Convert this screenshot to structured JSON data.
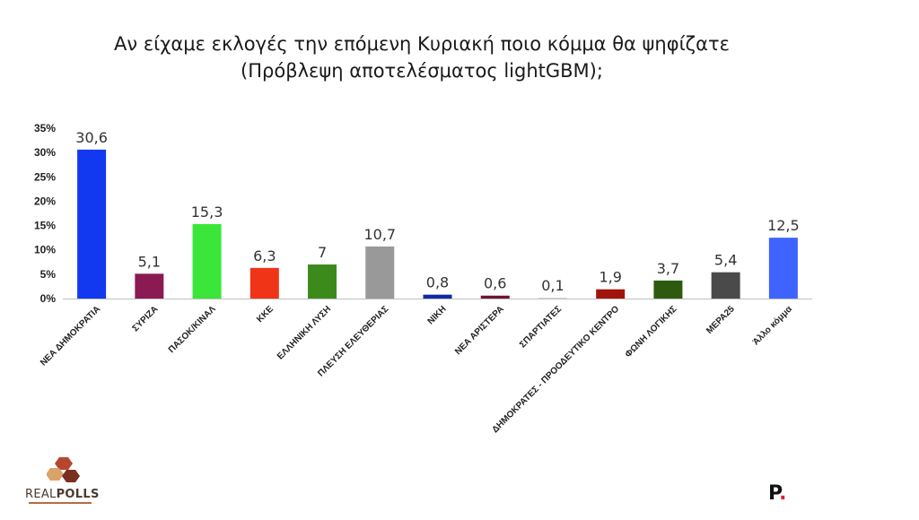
{
  "title": {
    "line1": "Αν είχαμε εκλογές την επόμενη Κυριακή ποιο κόμμα θα ψηφίζατε",
    "line2": "(Πρόβλεψη αποτελέσματος lightGBM);"
  },
  "logos": {
    "left_text_a": "REAL",
    "left_text_b": "POLLS",
    "right_text": "P",
    "right_dot": "."
  },
  "chart_data": {
    "type": "bar",
    "title": "Αν είχαμε εκλογές την επόμενη Κυριακή ποιο κόμμα θα ψηφίζατε (Πρόβλεψη αποτελέσματος lightGBM);",
    "xlabel": "",
    "ylabel": "",
    "ylim": [
      0,
      35
    ],
    "yticks": [
      "0%",
      "5%",
      "10%",
      "15%",
      "20%",
      "25%",
      "30%",
      "35%"
    ],
    "grid": false,
    "legend": "none",
    "categories": [
      "ΝΕΑ ΔΗΜΟΚΡΑΤΙΑ",
      "ΣΥΡΙΖΑ",
      "ΠΑΣΟΚ/ΚΙΝΑΛ",
      "ΚΚΕ",
      "ΕΛΛΗΝΙΚΗ ΛΥΣΗ",
      "ΠΛΕΥΣΗ ΕΛΕΥΘΕΡΙΑΣ",
      "ΝΙΚΗ",
      "ΝΕΑ ΑΡΙΣΤΕΡΑ",
      "ΣΠΑΡΤΙΑΤΕΣ",
      "ΔΗΜΟΚΡΑΤΕΣ - ΠΡΟΟΔΕΥΤΙΚΟ ΚΕΝΤΡΟ",
      "ΦΩΝΗ ΛΟΓΙΚΗΣ",
      "ΜΕΡΑ25",
      "Άλλο κόμμα"
    ],
    "values": [
      30.6,
      5.1,
      15.3,
      6.3,
      7,
      10.7,
      0.8,
      0.6,
      0.1,
      1.9,
      3.7,
      5.4,
      12.5
    ],
    "value_labels": [
      "30,6",
      "5,1",
      "15,3",
      "6,3",
      "7",
      "10,7",
      "0,8",
      "0,6",
      "0,1",
      "1,9",
      "3,7",
      "5,4",
      "12,5"
    ],
    "colors": [
      "#1238f0",
      "#8b1a52",
      "#39e639",
      "#f03418",
      "#3d8a1c",
      "#999999",
      "#0c2aa8",
      "#6e1630",
      "#cccccc",
      "#a0140e",
      "#2e5a10",
      "#4a4a4a",
      "#3e63ff"
    ]
  }
}
